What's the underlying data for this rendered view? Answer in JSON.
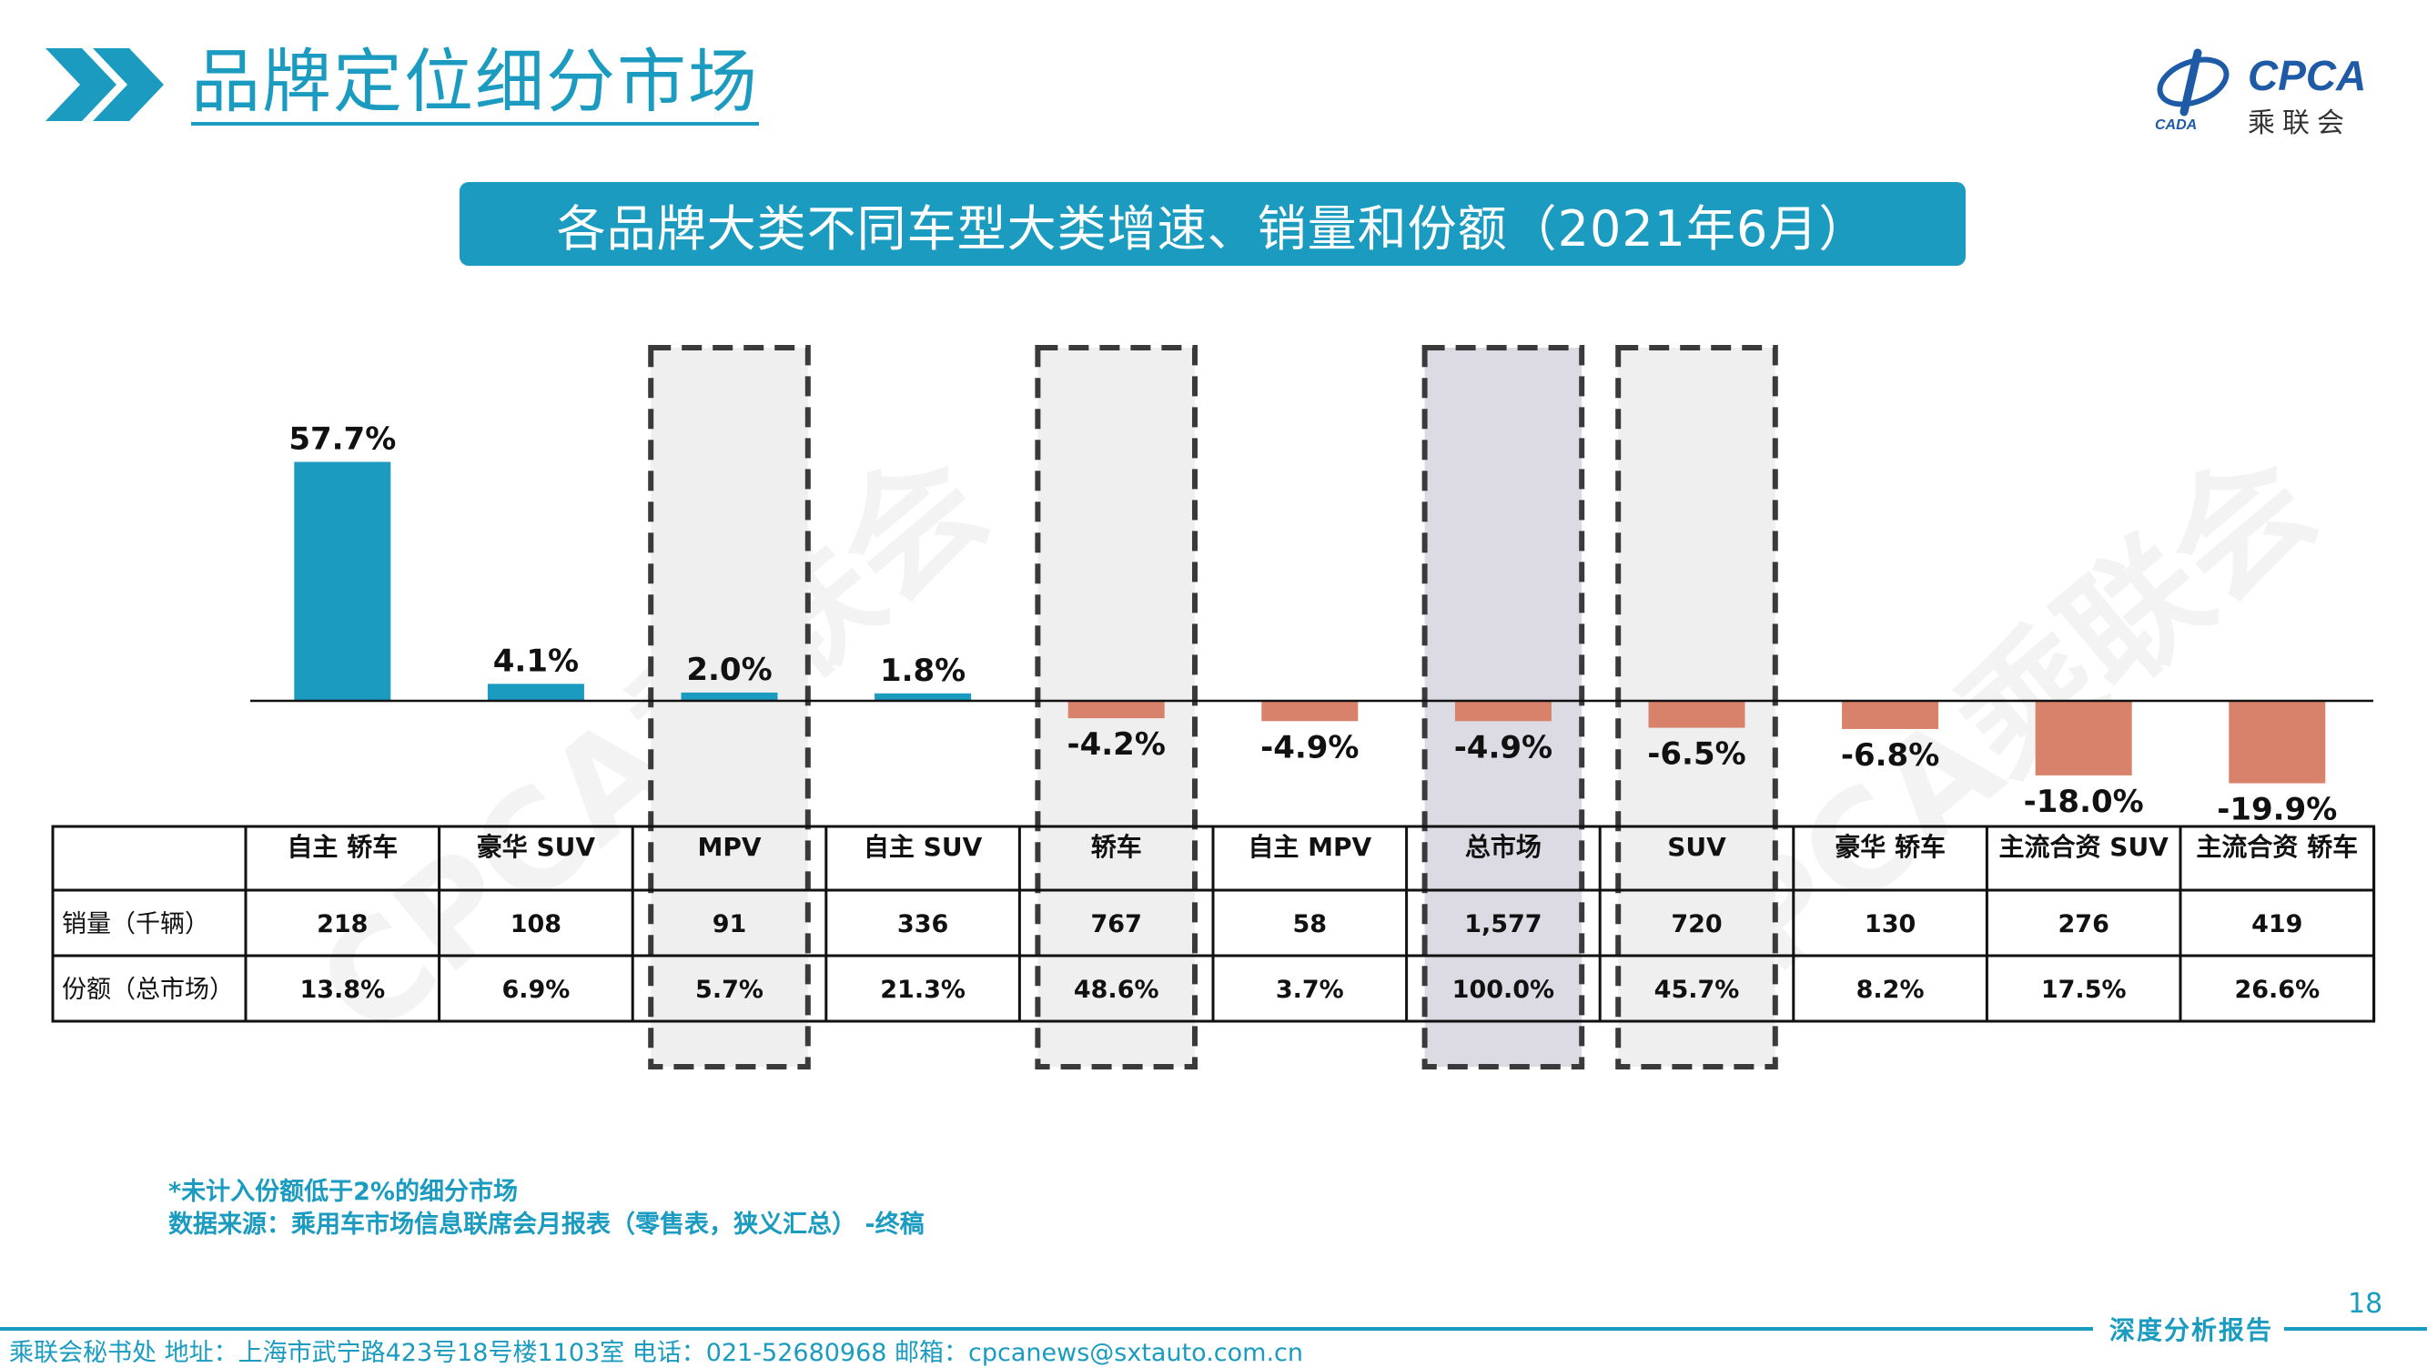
{
  "header": {
    "title": "品牌定位细分市场",
    "logo_text": "CPCA",
    "logo_sub": "乘联会",
    "logo_small": "CADA"
  },
  "subtitle": "各品牌大类不同车型大类增速、销量和份额（2021年6月）",
  "watermark": "CPCA乘联会",
  "chart_data": {
    "type": "bar",
    "categories": [
      "自主 轿车",
      "豪华 SUV",
      "MPV",
      "自主 SUV",
      "轿车",
      "自主 MPV",
      "总市场",
      "SUV",
      "豪华 轿车",
      "主流合资 SUV",
      "主流合资 轿车"
    ],
    "values": [
      57.7,
      4.1,
      2.0,
      1.8,
      -4.2,
      -4.9,
      -4.9,
      -6.5,
      -6.8,
      -18.0,
      -19.9
    ],
    "value_labels": [
      "57.7%",
      "4.1%",
      "2.0%",
      "1.8%",
      "-4.2%",
      "-4.9%",
      "-4.9%",
      "-6.5%",
      "-6.8%",
      "-18.0%",
      "-19.9%"
    ],
    "highlighted": [
      "MPV",
      "轿车",
      "总市场",
      "SUV"
    ],
    "highlight_shaded": [
      "MPV",
      "轿车",
      "总市场",
      "SUV"
    ],
    "highlight_dark": "总市场",
    "colors": {
      "positive": "#1a9bbf",
      "negative": "#d9826b",
      "highlight_fill": "#efefef",
      "highlight_dark_fill": "#dcdbe4",
      "highlight_border": "#3a3a3a"
    },
    "ylim": [
      -22,
      60
    ]
  },
  "table": {
    "rows": [
      {
        "label": "销量（千辆）",
        "values": [
          "218",
          "108",
          "91",
          "336",
          "767",
          "58",
          "1,577",
          "720",
          "130",
          "276",
          "419"
        ]
      },
      {
        "label": "份额（总市场）",
        "values": [
          "13.8%",
          "6.9%",
          "5.7%",
          "21.3%",
          "48.6%",
          "3.7%",
          "100.0%",
          "45.7%",
          "8.2%",
          "17.5%",
          "26.6%"
        ]
      }
    ]
  },
  "notes": {
    "line1": "*未计入份额低于2%的细分市场",
    "line2": "数据来源：乘用车市场信息联席会月报表（零售表，狭义汇总） -终稿"
  },
  "page_number": "18",
  "footer": {
    "tag": "深度分析报告",
    "contact": "乘联会秘书处   地址：上海市武宁路423号18号楼1103室  电话：021-52680968   邮箱：cpcanews@sxtauto.com.cn"
  }
}
